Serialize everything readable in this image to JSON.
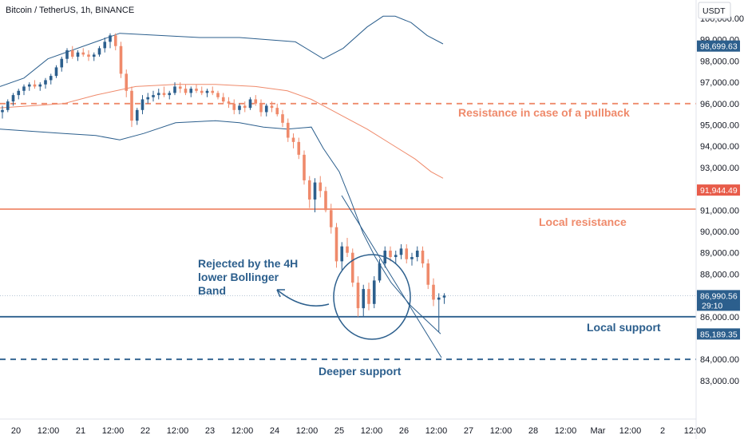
{
  "header": {
    "symbol": "Bitcoin / TetherUS, 1h, BINANCE",
    "currency": "USDT"
  },
  "chart_data": {
    "type": "candlestick",
    "title": "Bitcoin / TetherUS, 1h, BINANCE",
    "ylim": [
      82200,
      101900
    ],
    "y_ticks": [
      "100,000.00",
      "99,000.00",
      "98,000.00",
      "97,000.00",
      "96,000.00",
      "95,000.00",
      "94,000.00",
      "93,000.00",
      "91,000.00",
      "90,000.00",
      "89,000.00",
      "88,000.00",
      "86,000.00",
      "84,000.00",
      "83,000.00"
    ],
    "x_labels": [
      "20",
      "12:00",
      "21",
      "12:00",
      "22",
      "12:00",
      "23",
      "12:00",
      "24",
      "12:00",
      "25",
      "12:00",
      "26",
      "12:00",
      "27",
      "12:00",
      "28",
      "12:00",
      "Mar",
      "12:00",
      "2",
      "12:00"
    ],
    "price_badges": [
      {
        "value": "98,699.63",
        "color": "#2c5f8d"
      },
      {
        "value": "91,944.49",
        "color": "#e85c4a"
      },
      {
        "value": "86,990.56",
        "sub": "29:10",
        "color": "#2c5f8d"
      },
      {
        "value": "85,189.35",
        "color": "#2c5f8d"
      }
    ],
    "levels": [
      {
        "name": "Resistance in case of a pullback",
        "price": 96000,
        "style": "dashed",
        "color": "#ef8a6b"
      },
      {
        "name": "Local resistance",
        "price": 91050,
        "style": "solid",
        "color": "#ef8a6b"
      },
      {
        "name": "Local support",
        "price": 86000,
        "style": "solid",
        "color": "#2c5f8d"
      },
      {
        "name": "Deeper support",
        "price": 84000,
        "style": "dashed",
        "color": "#2c5f8d"
      }
    ],
    "annotations": {
      "rejected_line1": "Rejected by the 4H",
      "rejected_line2": "lower Bollinger",
      "rejected_line3": "Band"
    },
    "bollinger": {
      "upper": [
        [
          96.8,
          0
        ],
        [
          97.2,
          30
        ],
        [
          98.1,
          60
        ],
        [
          98.9,
          120
        ],
        [
          99.3,
          150
        ],
        [
          99.2,
          200
        ],
        [
          99.1,
          250
        ],
        [
          99.1,
          300
        ],
        [
          98.9,
          370
        ],
        [
          98.1,
          405
        ],
        [
          98.6,
          430
        ],
        [
          99.6,
          460
        ],
        [
          100.1,
          480
        ],
        [
          100.1,
          495
        ],
        [
          99.8,
          515
        ],
        [
          99.2,
          535
        ],
        [
          98.8,
          555
        ]
      ],
      "middle": [
        [
          95.8,
          0
        ],
        [
          95.9,
          40
        ],
        [
          96.0,
          80
        ],
        [
          96.4,
          120
        ],
        [
          96.8,
          170
        ],
        [
          96.9,
          220
        ],
        [
          96.9,
          270
        ],
        [
          96.8,
          320
        ],
        [
          96.6,
          360
        ],
        [
          96.2,
          390
        ],
        [
          95.8,
          410
        ],
        [
          95.4,
          430
        ],
        [
          94.8,
          460
        ],
        [
          94.1,
          490
        ],
        [
          93.4,
          520
        ],
        [
          92.8,
          540
        ],
        [
          92.5,
          555
        ]
      ],
      "lower": [
        [
          94.8,
          0
        ],
        [
          94.7,
          40
        ],
        [
          94.6,
          80
        ],
        [
          94.5,
          120
        ],
        [
          94.3,
          150
        ],
        [
          94.6,
          180
        ],
        [
          95.1,
          220
        ],
        [
          95.2,
          270
        ],
        [
          95.1,
          300
        ],
        [
          94.9,
          330
        ],
        [
          94.8,
          360
        ],
        [
          94.9,
          390
        ],
        [
          93.9,
          405
        ],
        [
          92.8,
          425
        ],
        [
          91.4,
          440
        ],
        [
          89.9,
          455
        ],
        [
          88.8,
          470
        ],
        [
          87.6,
          490
        ],
        [
          86.5,
          515
        ],
        [
          85.2,
          552
        ]
      ]
    },
    "candles": [
      [
        95.6,
        95.9,
        95.3,
        95.7
      ],
      [
        95.7,
        96.2,
        95.6,
        96.1
      ],
      [
        96.1,
        96.5,
        95.9,
        96.4
      ],
      [
        96.4,
        96.7,
        96.2,
        96.6
      ],
      [
        96.6,
        96.9,
        96.4,
        96.8
      ],
      [
        96.8,
        97.0,
        96.6,
        96.9
      ],
      [
        96.9,
        97.1,
        96.7,
        96.8
      ],
      [
        96.8,
        97.0,
        96.6,
        96.9
      ],
      [
        96.9,
        97.2,
        96.7,
        97.1
      ],
      [
        97.1,
        97.4,
        96.9,
        97.3
      ],
      [
        97.3,
        97.8,
        97.2,
        97.7
      ],
      [
        97.7,
        98.2,
        97.5,
        98.1
      ],
      [
        98.1,
        98.6,
        97.9,
        98.5
      ],
      [
        98.5,
        98.7,
        98.1,
        98.2
      ],
      [
        98.2,
        98.5,
        98.0,
        98.4
      ],
      [
        98.4,
        98.6,
        98.2,
        98.3
      ],
      [
        98.3,
        98.5,
        98.0,
        98.2
      ],
      [
        98.2,
        98.4,
        98.0,
        98.3
      ],
      [
        98.3,
        98.7,
        98.2,
        98.6
      ],
      [
        98.6,
        99.1,
        98.4,
        98.9
      ],
      [
        98.9,
        99.3,
        98.6,
        99.2
      ],
      [
        99.2,
        99.3,
        98.5,
        98.7
      ],
      [
        98.7,
        98.9,
        97.2,
        97.4
      ],
      [
        97.4,
        97.6,
        96.3,
        96.6
      ],
      [
        96.6,
        96.8,
        94.9,
        95.2
      ],
      [
        95.2,
        95.8,
        95.0,
        95.7
      ],
      [
        95.7,
        96.4,
        95.5,
        96.2
      ],
      [
        96.2,
        96.5,
        96.0,
        96.3
      ],
      [
        96.3,
        96.6,
        96.1,
        96.4
      ],
      [
        96.4,
        96.7,
        96.2,
        96.5
      ],
      [
        96.5,
        96.8,
        96.3,
        96.4
      ],
      [
        96.4,
        96.6,
        96.2,
        96.5
      ],
      [
        96.5,
        97.0,
        96.4,
        96.8
      ],
      [
        96.8,
        97.0,
        96.5,
        96.7
      ],
      [
        96.7,
        96.9,
        96.4,
        96.5
      ],
      [
        96.5,
        96.8,
        96.3,
        96.7
      ],
      [
        96.7,
        96.9,
        96.5,
        96.6
      ],
      [
        96.6,
        96.8,
        96.4,
        96.5
      ],
      [
        96.5,
        96.7,
        96.3,
        96.6
      ],
      [
        96.6,
        96.8,
        96.4,
        96.5
      ],
      [
        96.5,
        96.6,
        96.2,
        96.3
      ],
      [
        96.3,
        96.5,
        96.0,
        96.1
      ],
      [
        96.1,
        96.3,
        95.8,
        96.0
      ],
      [
        96.0,
        96.2,
        95.5,
        95.7
      ],
      [
        95.7,
        96.0,
        95.5,
        95.9
      ],
      [
        95.9,
        96.1,
        95.6,
        95.8
      ],
      [
        95.8,
        96.3,
        95.7,
        96.2
      ],
      [
        96.2,
        96.4,
        95.9,
        96.0
      ],
      [
        96.0,
        96.2,
        95.4,
        95.6
      ],
      [
        95.6,
        96.0,
        95.4,
        95.9
      ],
      [
        95.9,
        96.1,
        95.6,
        95.8
      ],
      [
        95.8,
        96.0,
        95.4,
        95.5
      ],
      [
        95.5,
        95.7,
        94.9,
        95.1
      ],
      [
        95.1,
        95.3,
        94.2,
        94.4
      ],
      [
        94.4,
        94.6,
        93.9,
        94.2
      ],
      [
        94.2,
        94.4,
        93.4,
        93.6
      ],
      [
        93.6,
        93.8,
        92.2,
        92.4
      ],
      [
        92.4,
        92.6,
        91.1,
        91.5
      ],
      [
        91.5,
        92.5,
        90.9,
        92.3
      ],
      [
        92.3,
        92.6,
        91.6,
        91.9
      ],
      [
        91.9,
        92.1,
        90.9,
        91.0
      ],
      [
        91.0,
        91.3,
        89.9,
        90.2
      ],
      [
        90.2,
        90.4,
        88.3,
        88.6
      ],
      [
        88.6,
        89.5,
        88.2,
        89.3
      ],
      [
        89.3,
        89.7,
        88.8,
        89.0
      ],
      [
        89.0,
        89.2,
        87.4,
        87.6
      ],
      [
        87.6,
        87.9,
        86.0,
        86.4
      ],
      [
        86.4,
        87.5,
        86.0,
        87.3
      ],
      [
        87.3,
        87.6,
        86.3,
        86.6
      ],
      [
        86.6,
        87.9,
        86.4,
        87.7
      ],
      [
        87.7,
        88.7,
        87.6,
        88.5
      ],
      [
        88.5,
        89.3,
        88.3,
        89.1
      ],
      [
        89.1,
        89.3,
        88.6,
        88.8
      ],
      [
        88.8,
        89.1,
        88.5,
        88.9
      ],
      [
        88.9,
        89.4,
        88.7,
        89.2
      ],
      [
        89.2,
        89.4,
        88.5,
        88.7
      ],
      [
        88.7,
        89.0,
        88.4,
        88.8
      ],
      [
        88.8,
        89.3,
        88.6,
        89.1
      ],
      [
        89.1,
        89.3,
        88.3,
        88.5
      ],
      [
        88.5,
        88.7,
        87.3,
        87.5
      ],
      [
        87.5,
        87.8,
        86.5,
        86.8
      ],
      [
        86.8,
        87.1,
        85.3,
        86.9
      ],
      [
        86.9,
        87.1,
        86.6,
        86.99
      ]
    ]
  }
}
